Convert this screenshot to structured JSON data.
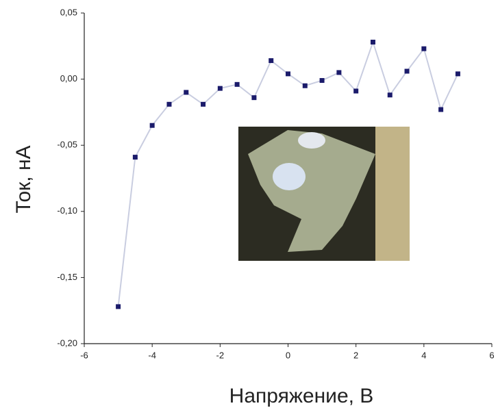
{
  "chart_data": {
    "type": "line",
    "x_label": "Напряжение, В",
    "y_label": "Ток, нА",
    "x": [
      -5,
      -4.5,
      -4,
      -3.5,
      -3,
      -2.5,
      -2,
      -1.5,
      -1,
      -0.5,
      0,
      0.5,
      1,
      1.5,
      2,
      2.5,
      3,
      3.5,
      4,
      4.5,
      5
    ],
    "series": [
      {
        "color": "#1b1b6b",
        "line_color": "#c9cde0",
        "values": [
          -0.172,
          -0.059,
          -0.035,
          -0.019,
          -0.01,
          -0.019,
          -0.007,
          -0.004,
          -0.014,
          0.014,
          0.004,
          -0.005,
          -0.001,
          0.005,
          -0.009,
          0.028,
          -0.012,
          0.006,
          0.023,
          -0.023,
          0.004
        ]
      }
    ],
    "xlim": [
      -6,
      6
    ],
    "xticks": [
      -6,
      -4,
      -2,
      0,
      2,
      4,
      6
    ],
    "ylim": [
      -0.2,
      0.05
    ],
    "yticks": [
      {
        "value": -0.2,
        "label": "-0,20"
      },
      {
        "value": -0.15,
        "label": "-0,15"
      },
      {
        "value": -0.1,
        "label": "-0,10"
      },
      {
        "value": -0.05,
        "label": "-0,05"
      },
      {
        "value": 0,
        "label": "0,00"
      },
      {
        "value": 0.05,
        "label": "0,05"
      }
    ]
  }
}
